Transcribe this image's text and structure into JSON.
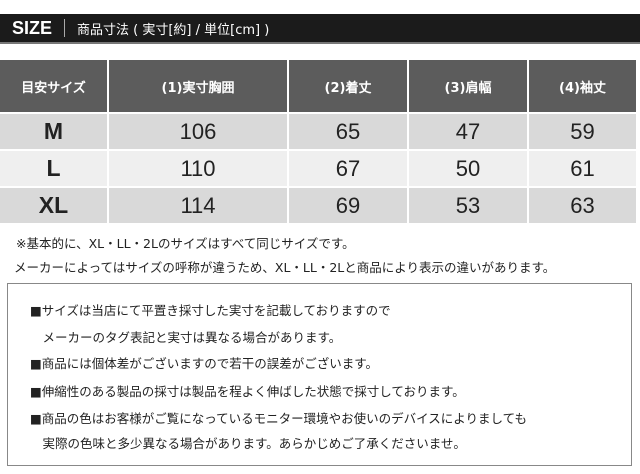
{
  "header": {
    "label": "SIZE",
    "description": "商品寸法 ( 実寸[約] / 単位[cm] )"
  },
  "table": {
    "columns": [
      "目安サイズ",
      "(1)実寸胸囲",
      "(2)着丈",
      "(3)肩幅",
      "(4)袖丈"
    ],
    "rows": [
      [
        "M",
        "106",
        "65",
        "47",
        "59"
      ],
      [
        "L",
        "110",
        "67",
        "50",
        "61"
      ],
      [
        "XL",
        "114",
        "69",
        "53",
        "63"
      ]
    ]
  },
  "notes": [
    "※基本的に、XL・LL・2Lのサイズはすべて同じサイズです。",
    "メーカーによってはサイズの呼称が違うため、XL・LL・2Lと商品により表示の違いがあります。"
  ],
  "box_lines": [
    "■サイズは当店にて平置き採寸した実寸を記載しておりますので",
    "　メーカーのタグ表記と実寸は異なる場合があります。",
    "■商品には個体差がございますので若干の誤差がございます。",
    "■伸縮性のある製品の採寸は製品を程よく伸ばした状態で採寸しております。",
    "■商品の色はお客様がご覧になっているモニター環境やお使いのデバイスによりましても",
    "　実際の色味と多少異なる場合があります。あらかじめご了承くださいませ。"
  ]
}
